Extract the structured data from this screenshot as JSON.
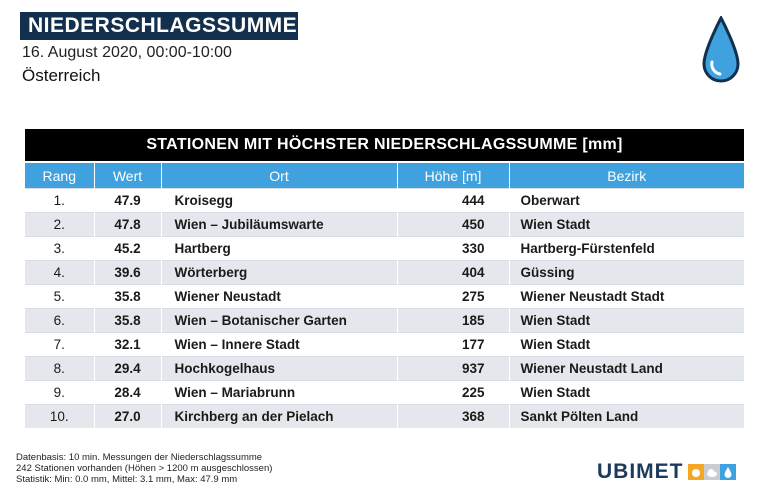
{
  "header": {
    "title": "NIEDERSCHLAGSSUMME",
    "date_range": "16. August 2020, 00:00-10:00",
    "region": "Österreich",
    "icon": "rain-drop-icon"
  },
  "table": {
    "title": "STATIONEN MIT HÖCHSTER NIEDERSCHLAGSSUMME [mm]",
    "columns": [
      "Rang",
      "Wert",
      "Ort",
      "Höhe [m]",
      "Bezirk"
    ],
    "rows": [
      {
        "rang": "1.",
        "wert": "47.9",
        "ort": "Kroisegg",
        "hoehe": "444",
        "bezirk": "Oberwart"
      },
      {
        "rang": "2.",
        "wert": "47.8",
        "ort": "Wien – Jubiläumswarte",
        "hoehe": "450",
        "bezirk": "Wien Stadt"
      },
      {
        "rang": "3.",
        "wert": "45.2",
        "ort": "Hartberg",
        "hoehe": "330",
        "bezirk": "Hartberg-Fürstenfeld"
      },
      {
        "rang": "4.",
        "wert": "39.6",
        "ort": "Wörterberg",
        "hoehe": "404",
        "bezirk": "Güssing"
      },
      {
        "rang": "5.",
        "wert": "35.8",
        "ort": "Wiener Neustadt",
        "hoehe": "275",
        "bezirk": "Wiener Neustadt Stadt"
      },
      {
        "rang": "6.",
        "wert": "35.8",
        "ort": "Wien – Botanischer Garten",
        "hoehe": "185",
        "bezirk": "Wien Stadt"
      },
      {
        "rang": "7.",
        "wert": "32.1",
        "ort": "Wien – Innere Stadt",
        "hoehe": "177",
        "bezirk": "Wien Stadt"
      },
      {
        "rang": "8.",
        "wert": "29.4",
        "ort": "Hochkogelhaus",
        "hoehe": "937",
        "bezirk": "Wiener Neustadt Land"
      },
      {
        "rang": "9.",
        "wert": "28.4",
        "ort": "Wien – Mariabrunn",
        "hoehe": "225",
        "bezirk": "Wien Stadt"
      },
      {
        "rang": "10.",
        "wert": "27.0",
        "ort": "Kirchberg an der Pielach",
        "hoehe": "368",
        "bezirk": "Sankt Pölten Land"
      }
    ]
  },
  "footer": {
    "lines": [
      "Datenbasis: 10 min. Messungen der Niederschlagssumme",
      "242 Stationen vorhanden (Höhen > 1200 m ausgeschlossen)",
      "Statistik: Min: 0.0 mm, Mittel: 3.1 mm, Max: 47.9 mm"
    ]
  },
  "logo": {
    "text": "UBIMET",
    "icons": [
      "sun-icon",
      "cloud-icon",
      "drop-icon"
    ]
  },
  "colors": {
    "title_bg": "#12304d",
    "header_blue": "#3fa2de",
    "stripe": "#e4e7ec",
    "drop_blue": "#3fa2de"
  }
}
